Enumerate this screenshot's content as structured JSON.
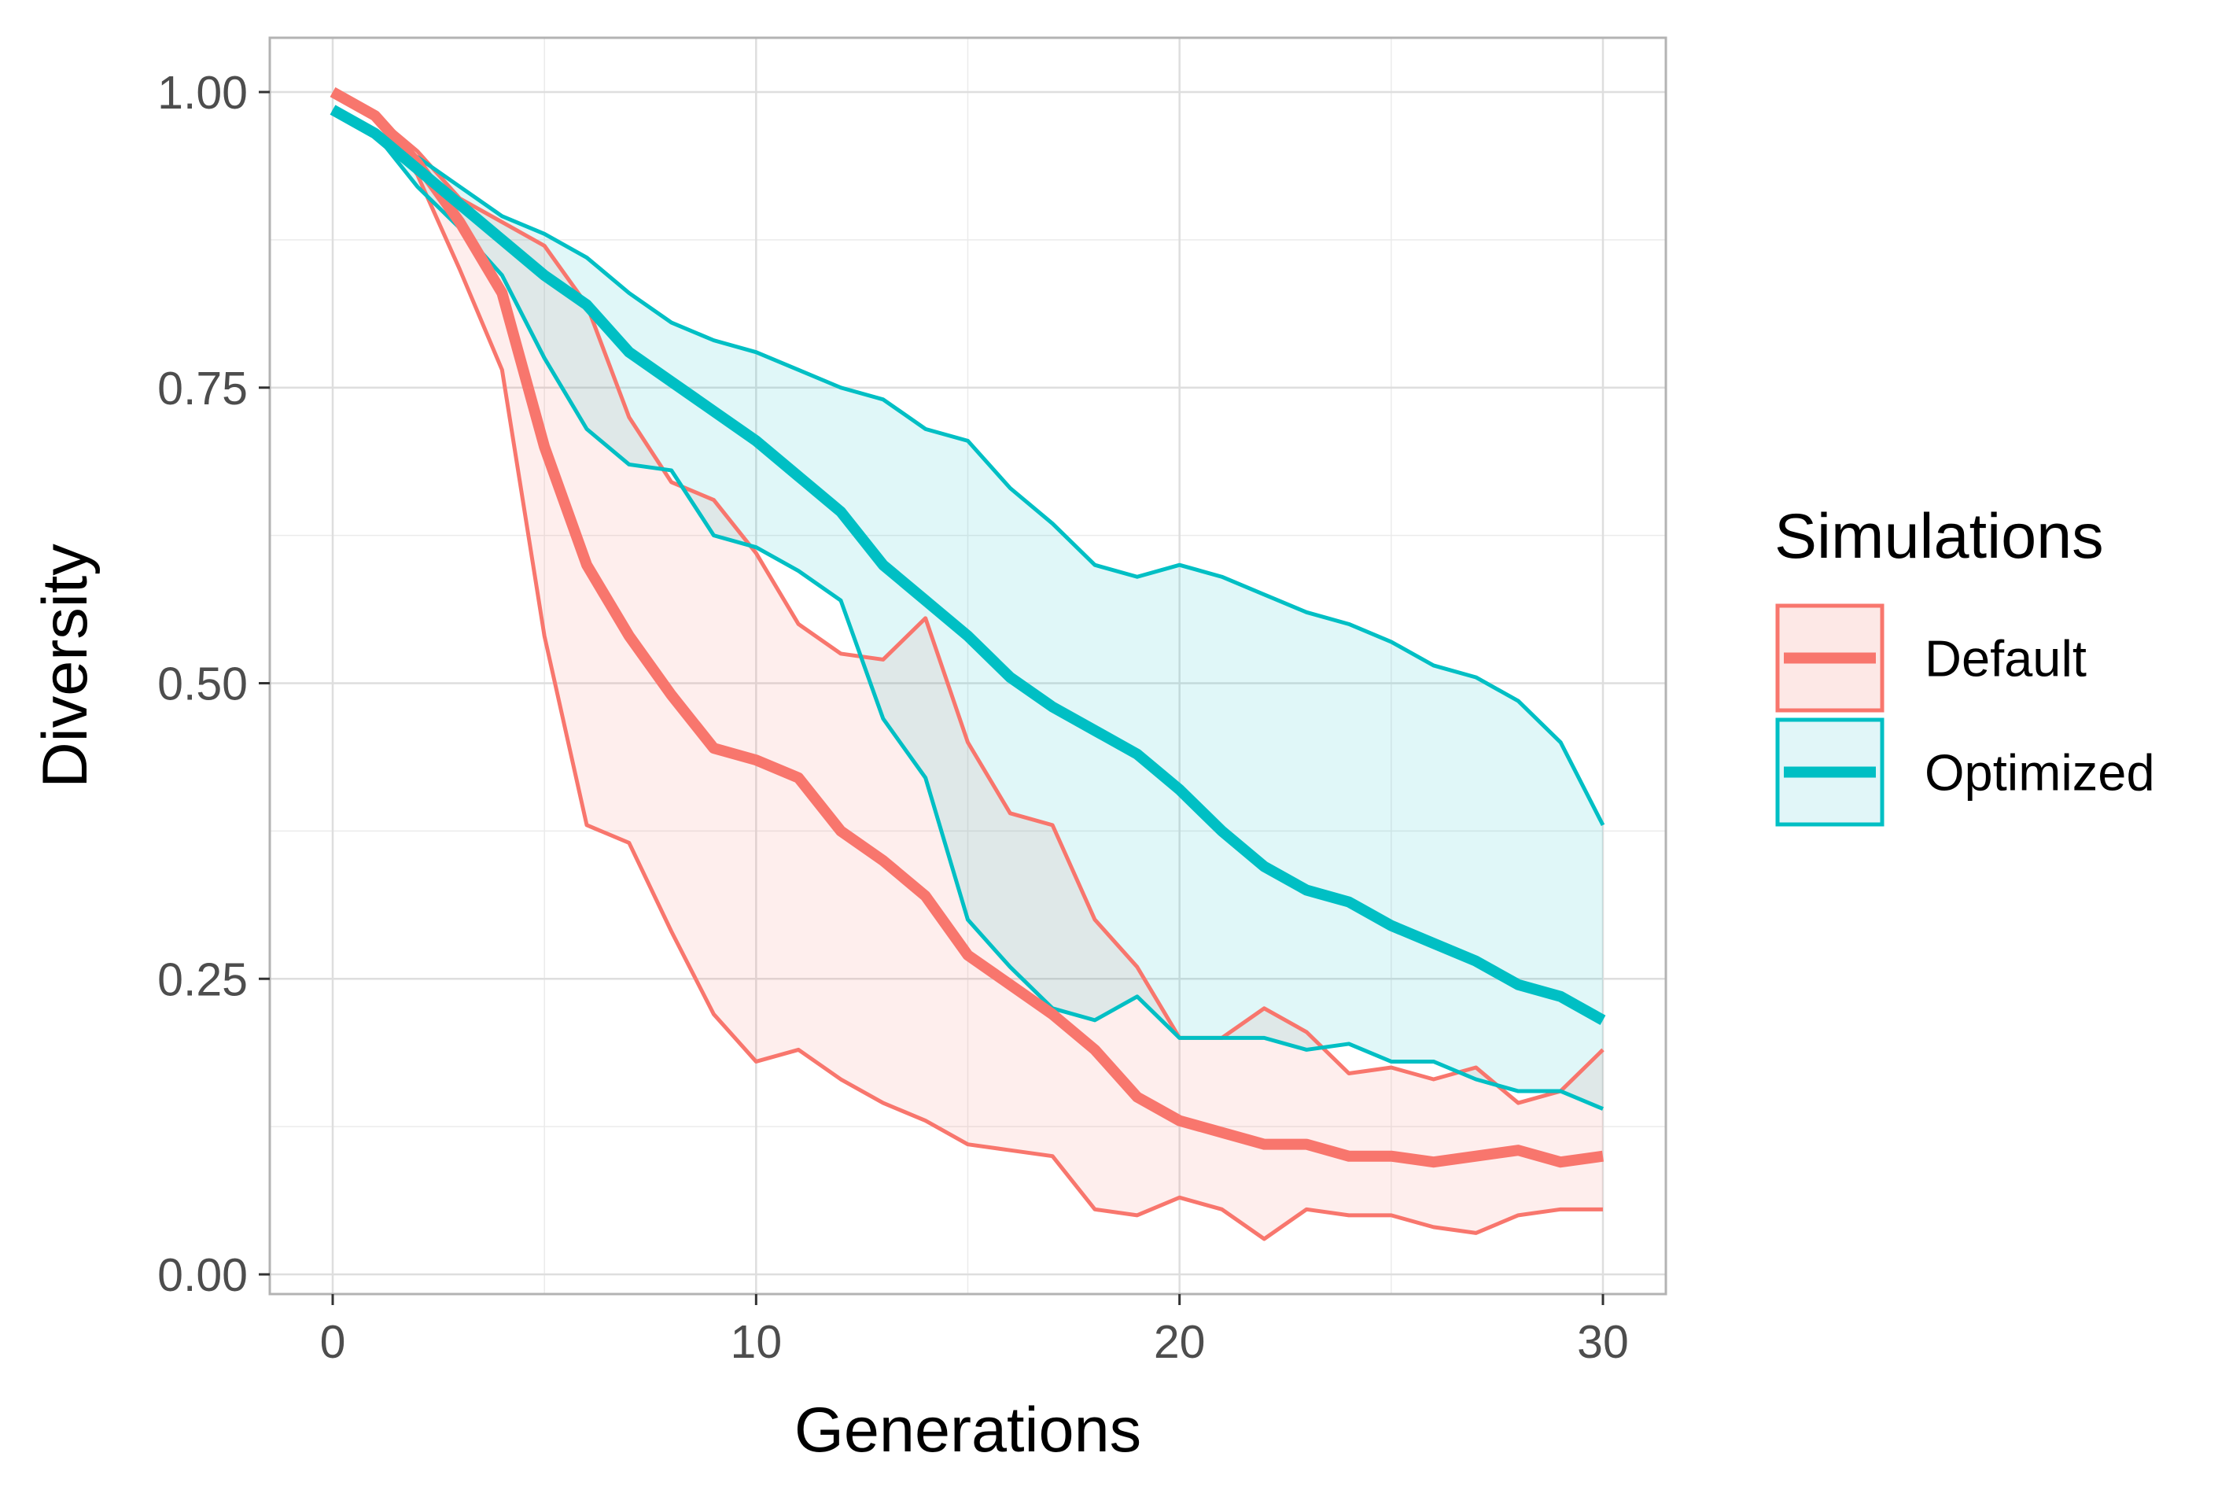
{
  "chart_data": {
    "type": "line",
    "xlabel": "Generations",
    "ylabel": "Diversity",
    "xlim": [
      -1.5,
      31.5
    ],
    "ylim": [
      -0.04,
      1.05
    ],
    "x_ticks": [
      0,
      10,
      20,
      30
    ],
    "x_tick_labels": [
      "0",
      "10",
      "20",
      "30"
    ],
    "y_ticks": [
      0,
      0.25,
      0.5,
      0.75,
      1.0
    ],
    "y_tick_labels": [
      "0.00",
      "0.25",
      "0.50",
      "0.75",
      "1.00"
    ],
    "grid": true,
    "legend": {
      "title": "Simulations",
      "position": "right"
    },
    "x": [
      0,
      1,
      2,
      3,
      4,
      5,
      6,
      7,
      8,
      9,
      10,
      11,
      12,
      13,
      14,
      15,
      16,
      17,
      18,
      19,
      20,
      21,
      22,
      23,
      24,
      25,
      26,
      27,
      28,
      29,
      30
    ],
    "series": [
      {
        "name": "Default",
        "color": "#F8766D",
        "fill": "#FDE8E6",
        "mean": [
          1.0,
          0.98,
          0.94,
          0.89,
          0.83,
          0.7,
          0.6,
          0.54,
          0.49,
          0.445,
          0.435,
          0.42,
          0.375,
          0.35,
          0.32,
          0.27,
          0.245,
          0.22,
          0.19,
          0.15,
          0.13,
          0.12,
          0.11,
          0.11,
          0.1,
          0.1,
          0.095,
          0.1,
          0.105,
          0.095,
          0.1
        ],
        "upper": [
          1.0,
          0.98,
          0.95,
          0.91,
          0.89,
          0.87,
          0.82,
          0.725,
          0.67,
          0.655,
          0.61,
          0.55,
          0.525,
          0.52,
          0.555,
          0.45,
          0.39,
          0.38,
          0.3,
          0.26,
          0.2,
          0.2,
          0.225,
          0.205,
          0.17,
          0.175,
          0.165,
          0.175,
          0.145,
          0.155,
          0.19
        ],
        "lower": [
          1.0,
          0.98,
          0.93,
          0.85,
          0.765,
          0.54,
          0.38,
          0.365,
          0.29,
          0.22,
          0.18,
          0.19,
          0.165,
          0.145,
          0.13,
          0.11,
          0.105,
          0.1,
          0.055,
          0.05,
          0.065,
          0.055,
          0.03,
          0.055,
          0.05,
          0.05,
          0.04,
          0.035,
          0.05,
          0.055,
          0.055
        ]
      },
      {
        "name": "Optimized",
        "color": "#00BFC4",
        "fill": "#E1F6F8",
        "mean": [
          0.985,
          0.965,
          0.935,
          0.905,
          0.875,
          0.845,
          0.82,
          0.78,
          0.755,
          0.73,
          0.705,
          0.675,
          0.645,
          0.6,
          0.57,
          0.54,
          0.505,
          0.48,
          0.46,
          0.44,
          0.41,
          0.375,
          0.345,
          0.325,
          0.315,
          0.295,
          0.28,
          0.265,
          0.245,
          0.235,
          0.215
        ],
        "upper": [
          0.985,
          0.965,
          0.945,
          0.92,
          0.895,
          0.88,
          0.86,
          0.83,
          0.805,
          0.79,
          0.78,
          0.765,
          0.75,
          0.74,
          0.715,
          0.705,
          0.665,
          0.635,
          0.6,
          0.59,
          0.6,
          0.59,
          0.575,
          0.56,
          0.55,
          0.535,
          0.515,
          0.505,
          0.485,
          0.45,
          0.38
        ],
        "lower": [
          0.985,
          0.965,
          0.92,
          0.885,
          0.845,
          0.775,
          0.715,
          0.685,
          0.68,
          0.625,
          0.615,
          0.595,
          0.57,
          0.47,
          0.42,
          0.3,
          0.26,
          0.225,
          0.215,
          0.235,
          0.2,
          0.2,
          0.2,
          0.19,
          0.195,
          0.18,
          0.18,
          0.165,
          0.155,
          0.155,
          0.14
        ]
      }
    ]
  }
}
